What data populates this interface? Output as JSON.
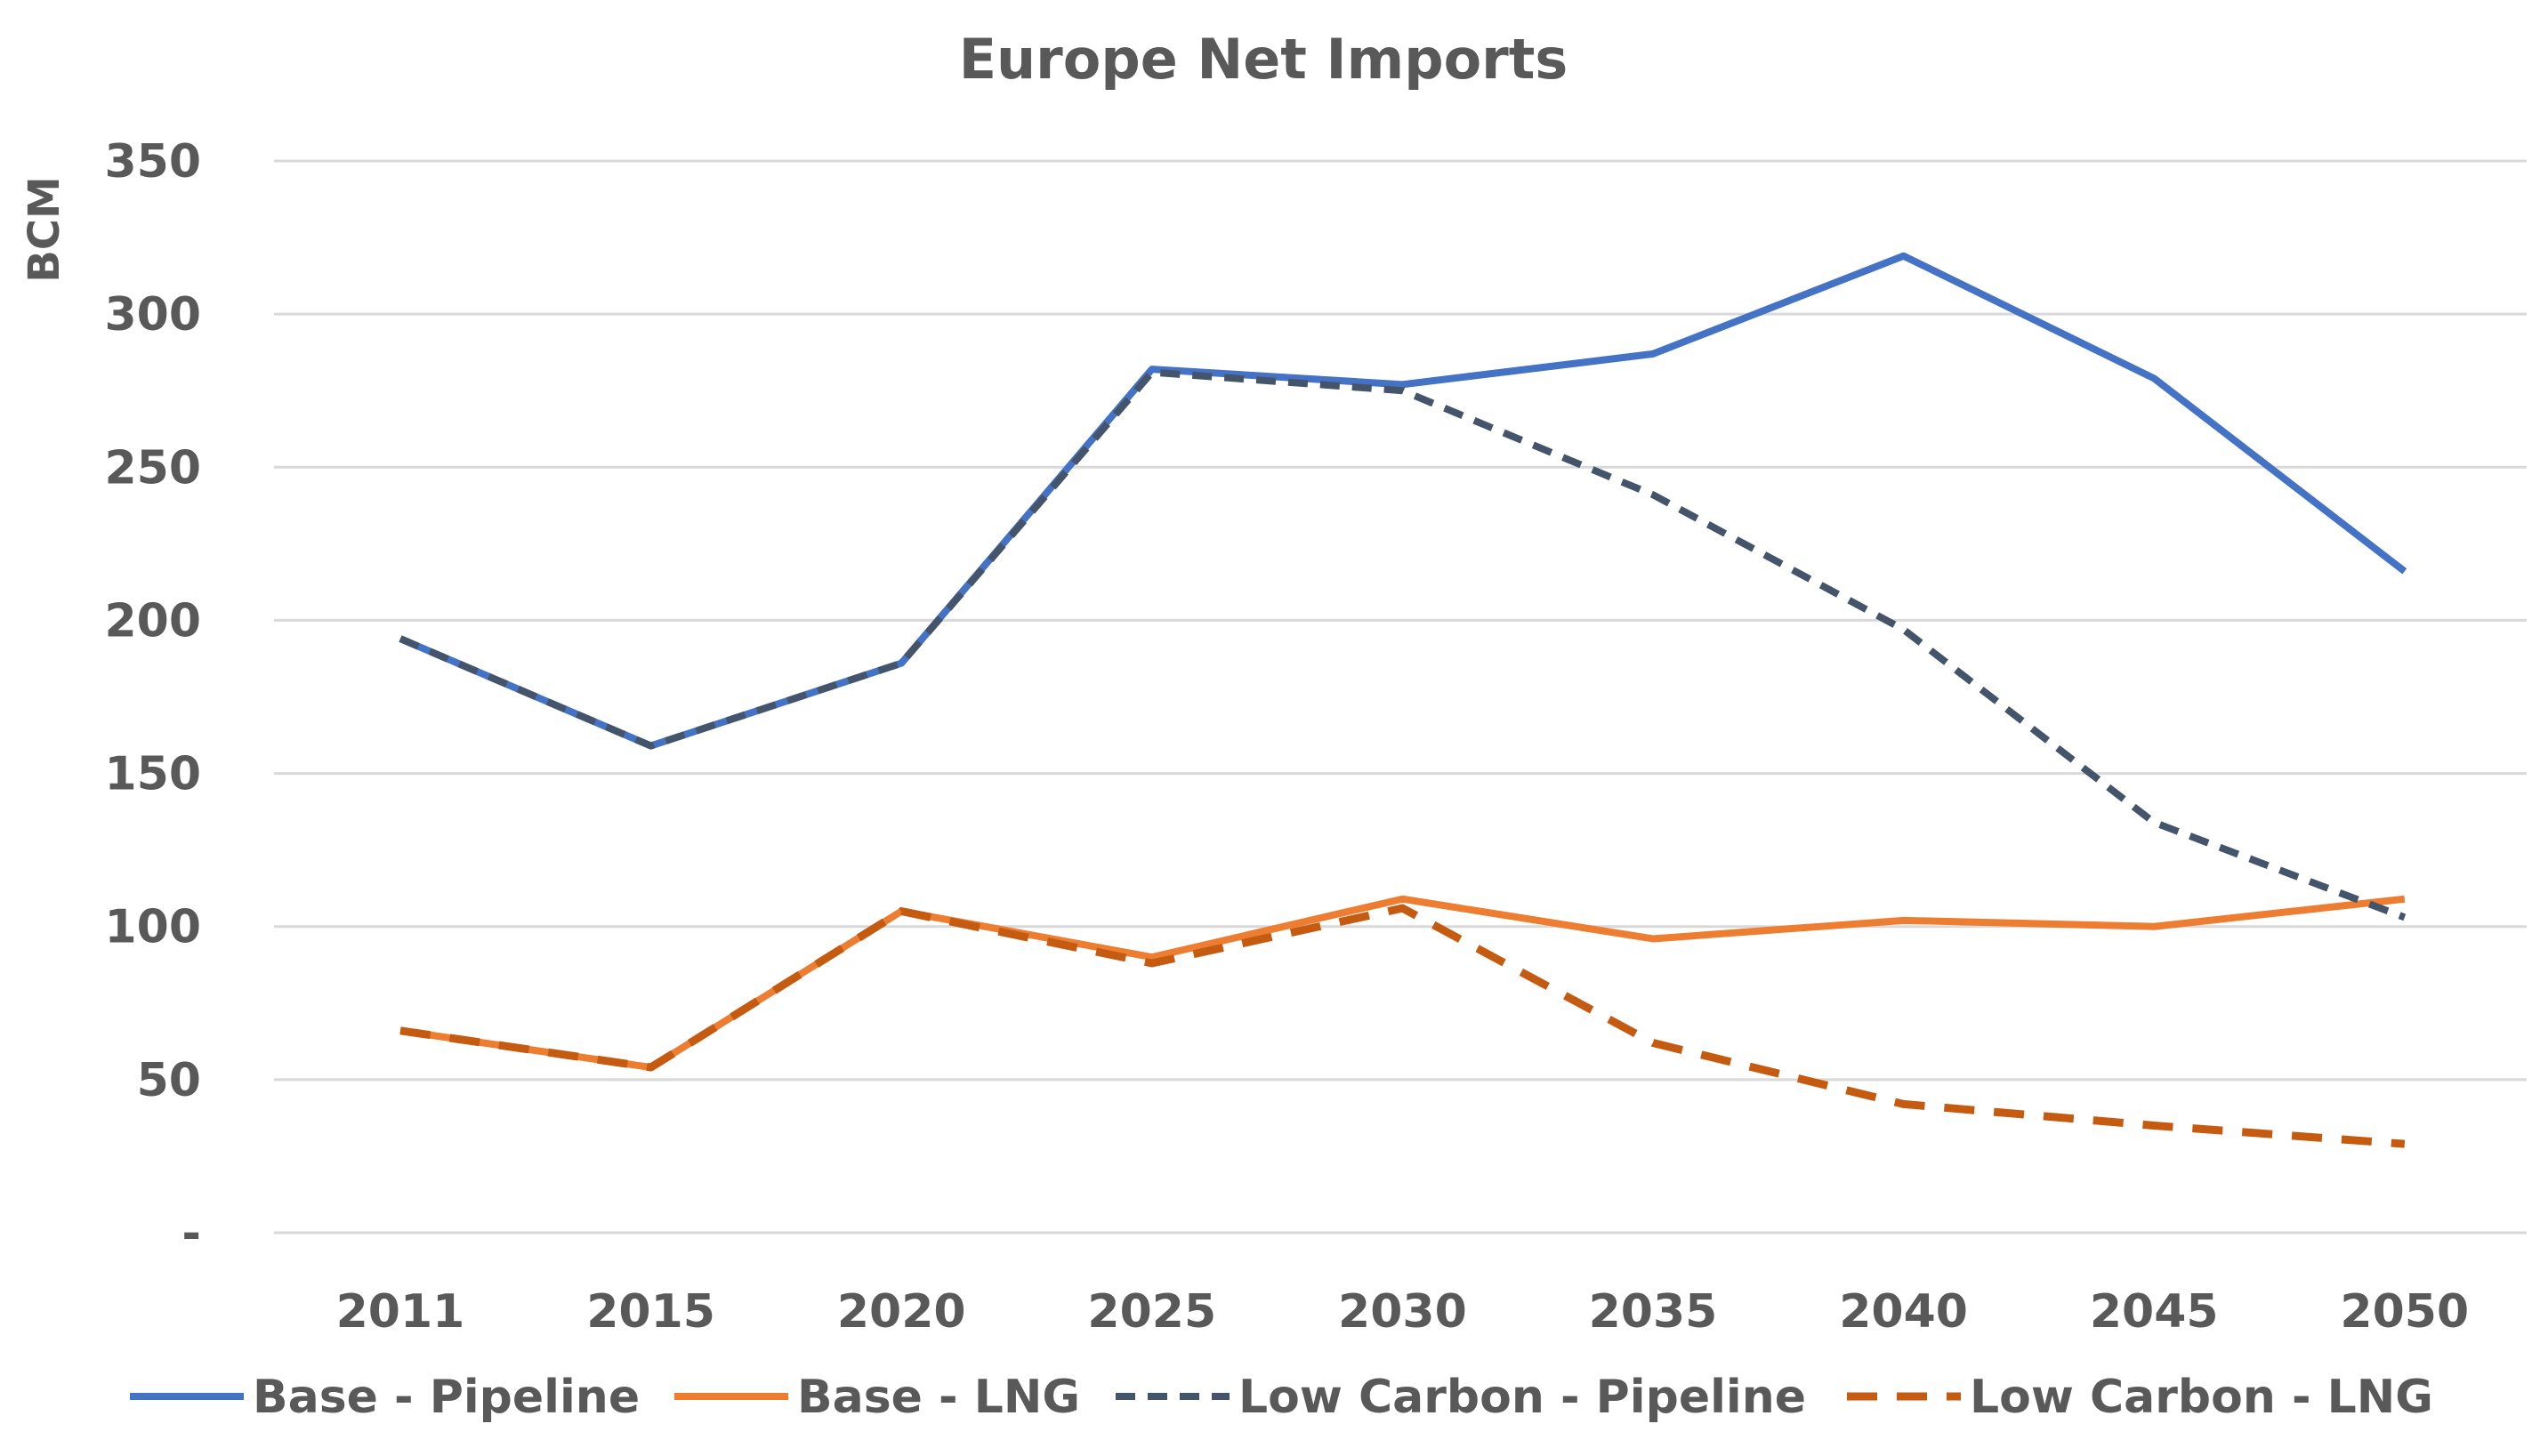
{
  "chart_data": {
    "type": "line",
    "title": "Europe Net Imports",
    "xlabel": "",
    "ylabel": "BCM",
    "categories": [
      "2011",
      "2015",
      "2020",
      "2025",
      "2030",
      "2035",
      "2040",
      "2045",
      "2050"
    ],
    "ylim": [
      0,
      350
    ],
    "yticks": [
      0,
      50,
      100,
      150,
      200,
      250,
      300,
      350
    ],
    "ytick_labels": [
      "-",
      "50",
      "100",
      "150",
      "200",
      "250",
      "300",
      "350"
    ],
    "grid": true,
    "legend_position": "bottom",
    "series": [
      {
        "name": "Base - Pipeline",
        "color": "#4472C4",
        "style": "solid",
        "values": [
          194,
          159,
          186,
          282,
          277,
          287,
          319,
          279,
          216
        ]
      },
      {
        "name": "Base - LNG",
        "color": "#ED7D31",
        "style": "solid",
        "values": [
          66,
          54,
          105,
          90,
          109,
          96,
          102,
          100,
          109
        ]
      },
      {
        "name": "Low Carbon - Pipeline",
        "color": "#44546A",
        "style": "dashed",
        "values": [
          194,
          159,
          186,
          281,
          275,
          241,
          197,
          134,
          103
        ]
      },
      {
        "name": "Low Carbon - LNG",
        "color": "#C55A11",
        "style": "dashed",
        "values": [
          66,
          54,
          105,
          88,
          106,
          62,
          42,
          35,
          29
        ]
      }
    ]
  }
}
